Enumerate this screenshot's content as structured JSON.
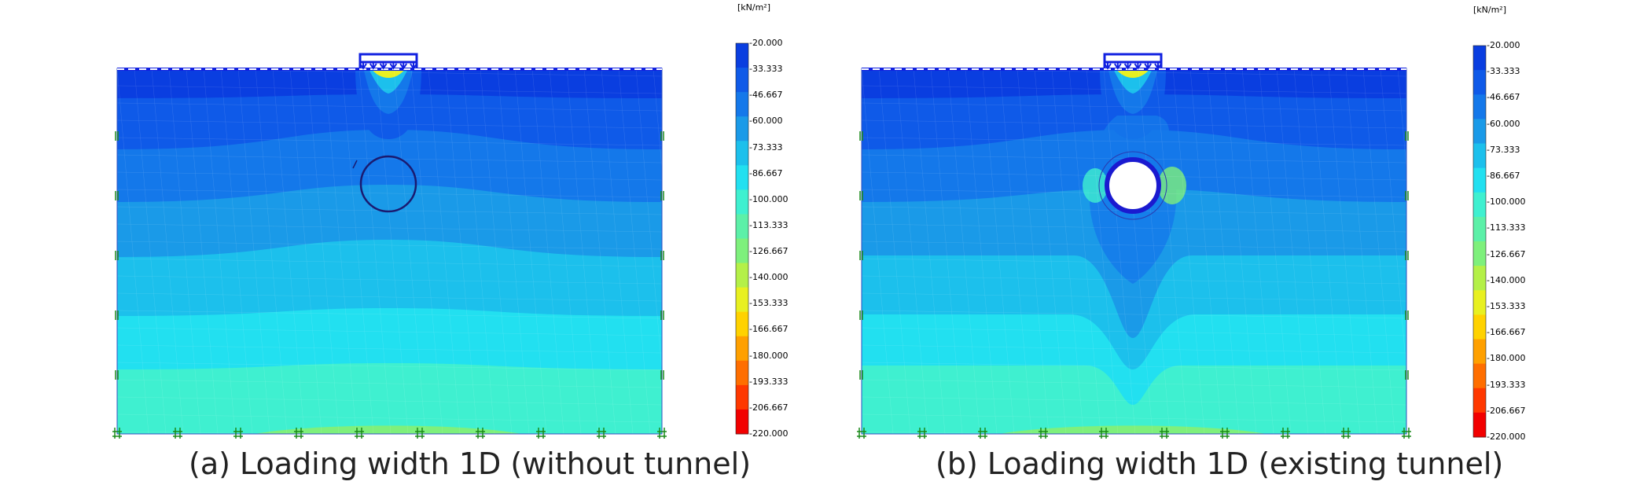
{
  "panels": [
    {
      "id": "a",
      "caption": "(a) Loading width 1D (without tunnel)",
      "unit": "[kN/m²]",
      "tunnel": "outline"
    },
    {
      "id": "b",
      "caption": "(b) Loading width 1D (existing tunnel)",
      "unit": "[kN/m²]",
      "tunnel": "excavated"
    }
  ],
  "legend": {
    "ticks": [
      "-20.000",
      "-33.333",
      "-46.667",
      "-60.000",
      "-73.333",
      "-86.667",
      "-100.000",
      "-113.333",
      "-126.667",
      "-140.000",
      "-153.333",
      "-166.667",
      "-180.000",
      "-193.333",
      "-206.667",
      "-220.000"
    ],
    "colors": [
      "#0a3ee0",
      "#0f5ae8",
      "#1478ea",
      "#1a9ae8",
      "#1cc0ec",
      "#22e0f0",
      "#3ff0d0",
      "#5cf0a8",
      "#7ef07c",
      "#b4f048",
      "#e8f020",
      "#ffd200",
      "#ffa000",
      "#ff6e00",
      "#ff3800",
      "#f20000"
    ]
  },
  "colors": {
    "load": "#1020e0",
    "mesh_edge": "#3050c0",
    "boundary": "#1a8a1a",
    "tunnel_lining": "#1a1ad0"
  }
}
